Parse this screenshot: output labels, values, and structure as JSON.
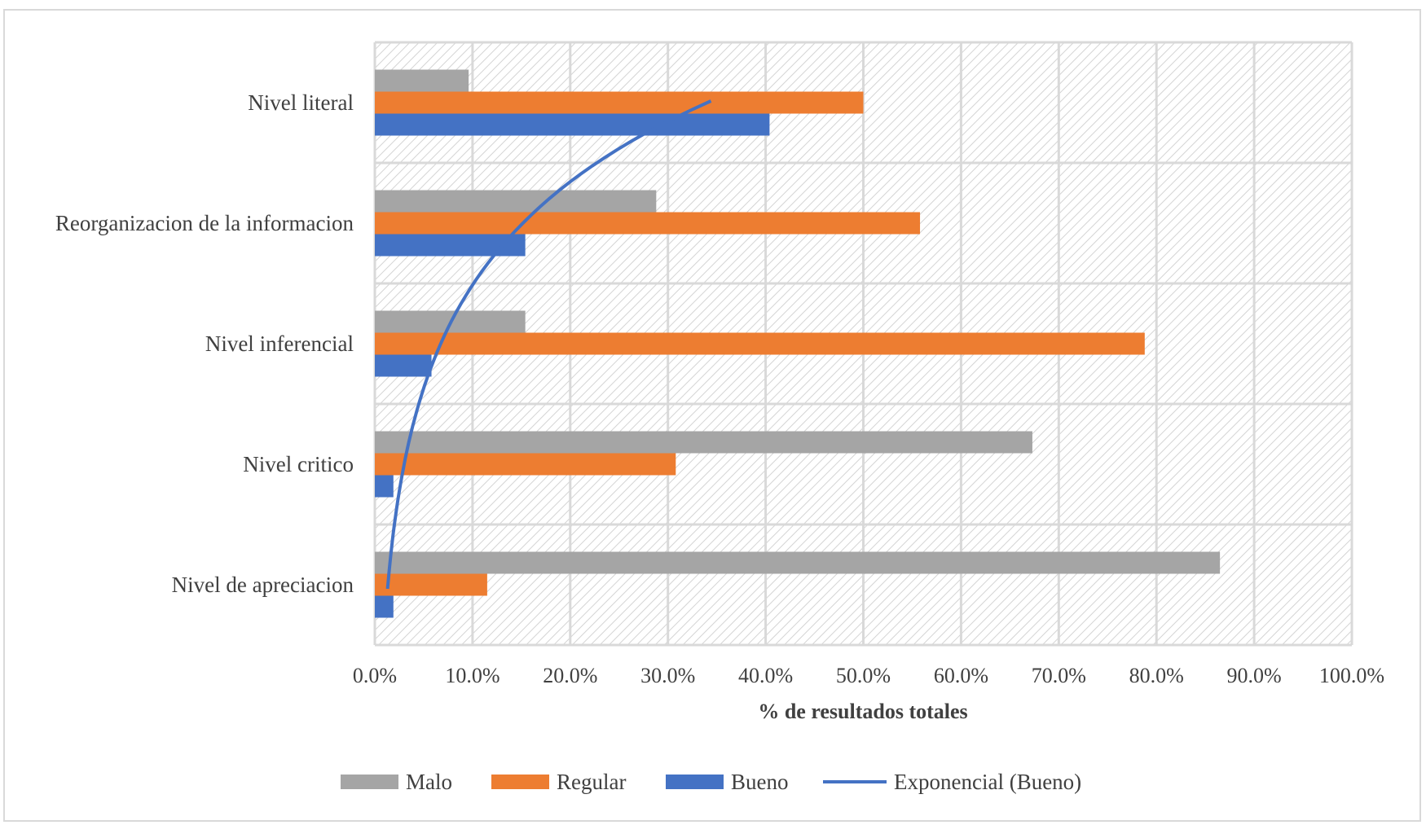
{
  "chart_data": {
    "type": "bar",
    "orientation": "horizontal",
    "categories": [
      "Nivel literal",
      "Reorganizacion de la informacion",
      "Nivel inferencial",
      "Nivel critico",
      "Nivel de apreciacion"
    ],
    "series": [
      {
        "name": "Malo",
        "color": "#a5a5a5",
        "values": [
          9.6,
          28.8,
          15.4,
          67.3,
          86.5
        ]
      },
      {
        "name": "Regular",
        "color": "#ed7d31",
        "values": [
          50.0,
          55.8,
          78.8,
          30.8,
          11.5
        ]
      },
      {
        "name": "Bueno",
        "color": "#4472c4",
        "values": [
          40.4,
          15.4,
          5.8,
          1.9,
          1.9
        ]
      }
    ],
    "trendline": {
      "name": "Exponencial (Bueno)",
      "color": "#4472c4",
      "series": "Bueno",
      "kind": "exponential",
      "start_value": 1.3,
      "end_value": 34.4
    },
    "xlabel": "% de resultados totales",
    "xlim": [
      0,
      100
    ],
    "ticks": [
      "0.0%",
      "10.0%",
      "20.0%",
      "30.0%",
      "40.0%",
      "50.0%",
      "60.0%",
      "70.0%",
      "80.0%",
      "90.0%",
      "100.0%"
    ],
    "legend_position": "bottom",
    "grid": true
  }
}
